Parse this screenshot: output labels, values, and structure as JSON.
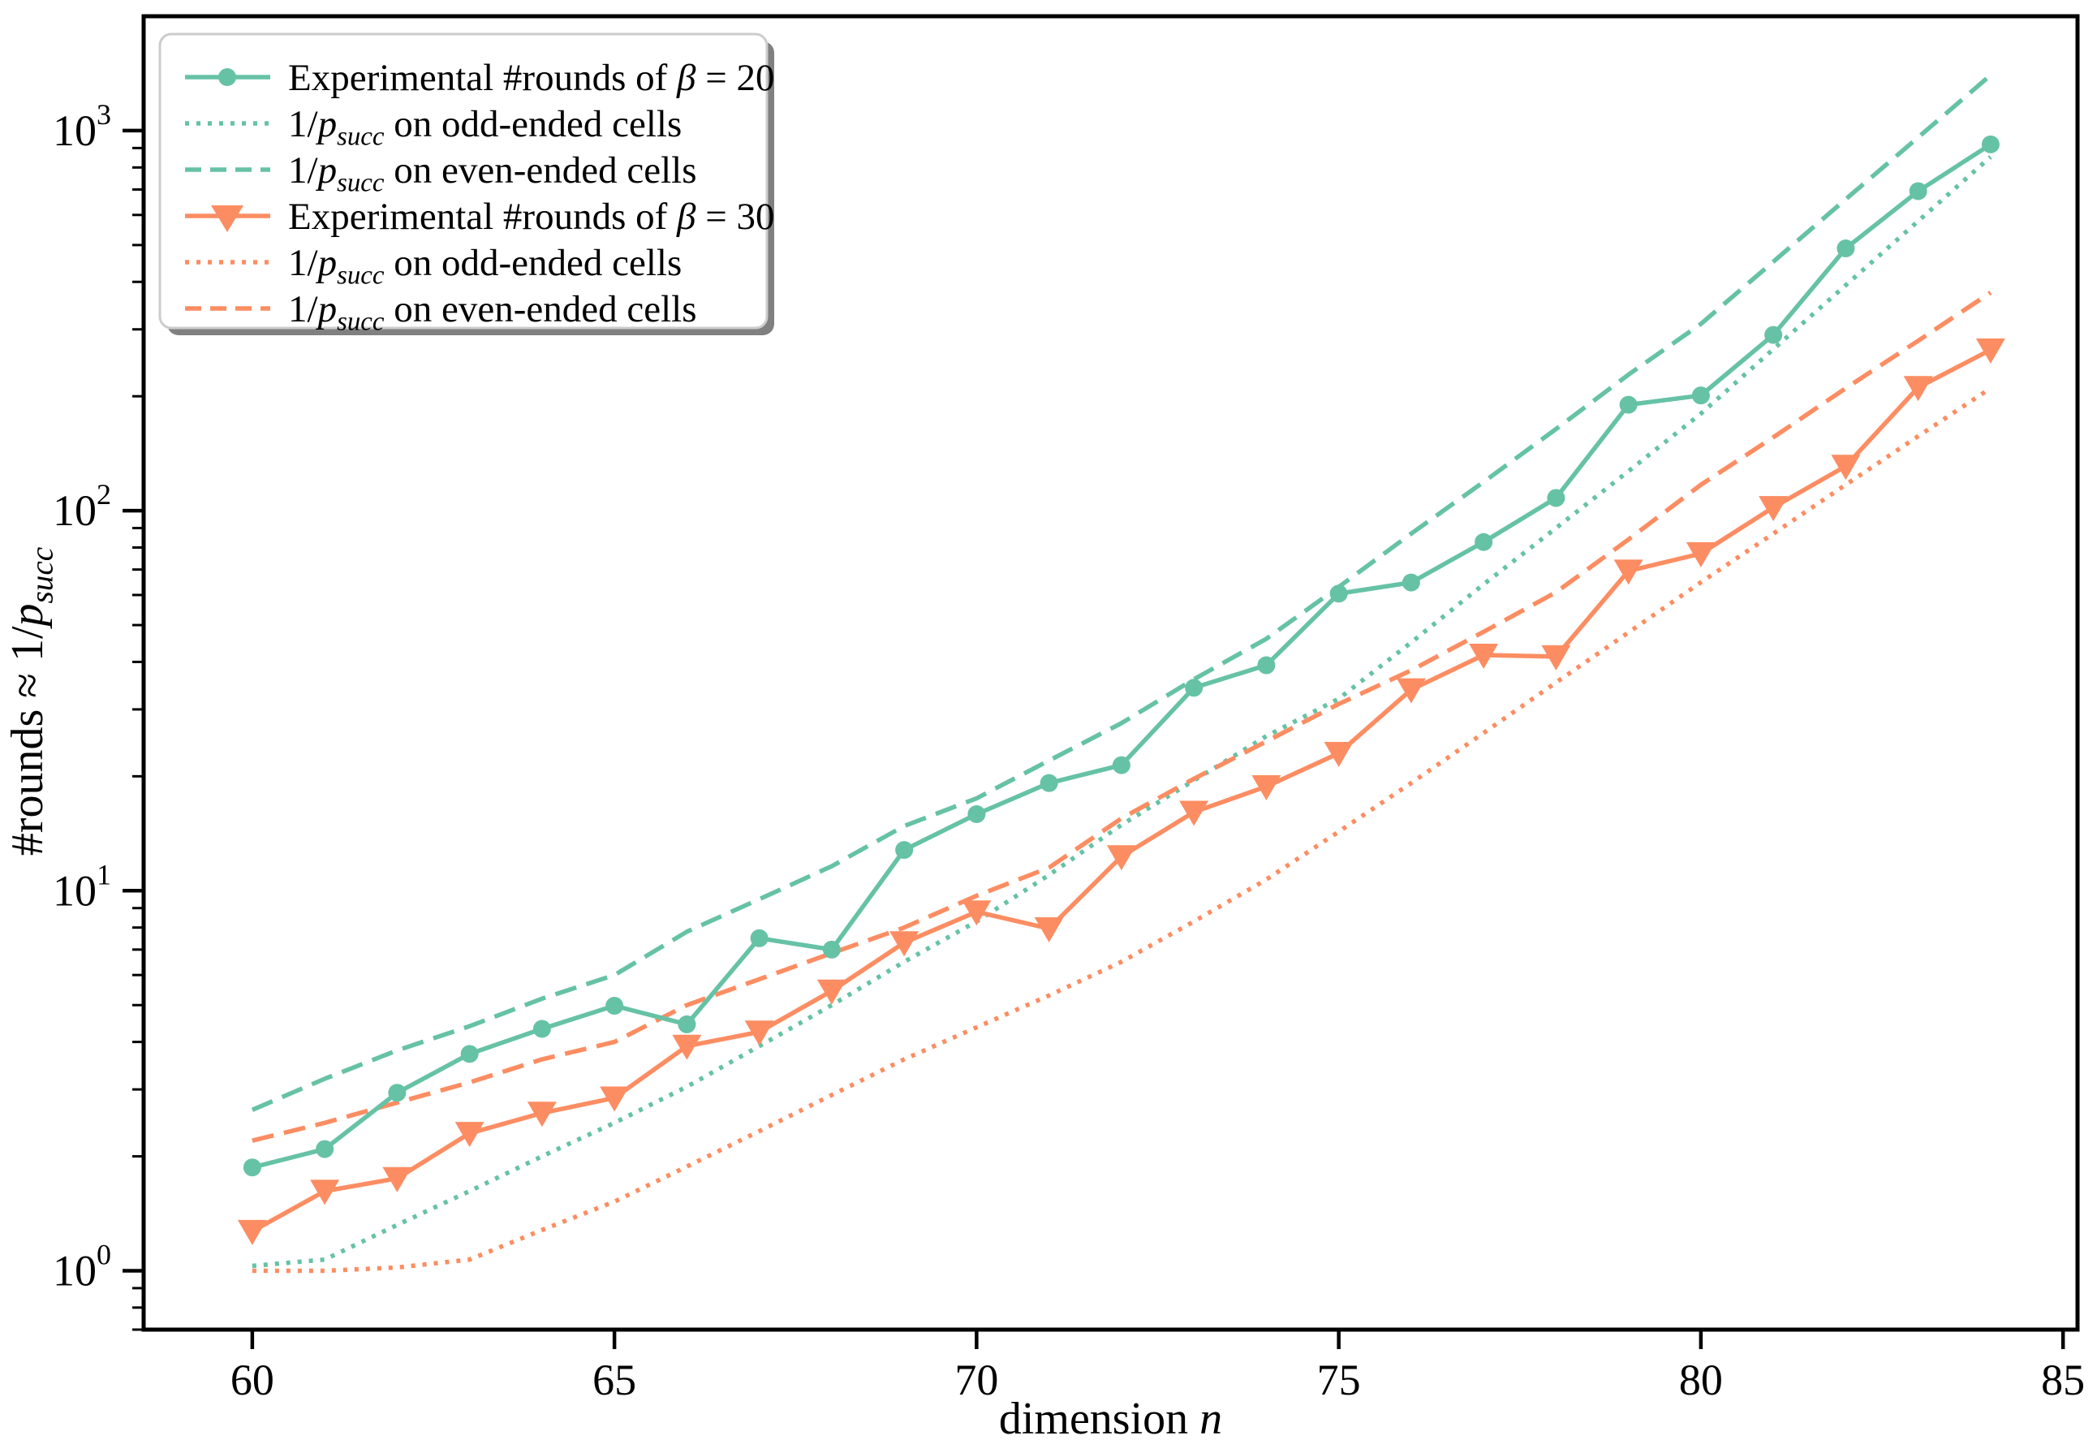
{
  "chart_data": {
    "type": "line",
    "title": "",
    "grid": false,
    "legend_position": "upper left",
    "colors": {
      "teal": "#66C2A5",
      "orange": "#FC8D62",
      "legend_border": "#cccccc",
      "legend_shadow": "#808080",
      "axis": "#000000"
    },
    "x_axis": {
      "label_parts": [
        {
          "t": "dimension "
        },
        {
          "t": "n",
          "i": true
        }
      ],
      "ticks": [
        60,
        65,
        70,
        75,
        80,
        85
      ],
      "range": [
        58.5,
        85.2
      ]
    },
    "y_axis": {
      "scale": "log",
      "label_parts": [
        {
          "t": "#rounds ≈ 1/"
        },
        {
          "t": "p",
          "i": true
        },
        {
          "t": "succ",
          "i": true,
          "sub": true
        }
      ],
      "ticks": [
        {
          "v": 1,
          "exp": "0"
        },
        {
          "v": 10,
          "exp": "1"
        },
        {
          "v": 100,
          "exp": "2"
        },
        {
          "v": 1000,
          "exp": "3"
        }
      ],
      "range": [
        0.7,
        2000
      ]
    },
    "x_values": [
      60,
      61,
      62,
      63,
      64,
      65,
      66,
      67,
      68,
      69,
      70,
      71,
      72,
      73,
      74,
      75,
      76,
      77,
      78,
      79,
      80,
      81,
      82,
      83,
      84
    ],
    "series": [
      {
        "name": "exp-rounds-beta20",
        "color": "#66C2A5",
        "line": "solid",
        "marker": "circle",
        "label_parts": [
          {
            "t": "Experimental #rounds of "
          },
          {
            "t": "β",
            "i": true
          },
          {
            "t": " = 20"
          }
        ],
        "y": [
          1.87,
          2.09,
          2.94,
          3.72,
          4.33,
          4.98,
          4.45,
          7.5,
          7.0,
          12.8,
          15.9,
          19.2,
          21.4,
          34.2,
          39.2,
          60.5,
          64.7,
          82.7,
          108,
          190,
          201,
          290,
          490,
          693,
          920
        ]
      },
      {
        "name": "inv-psucc-odd-beta20",
        "color": "#66C2A5",
        "line": "dotted",
        "marker": null,
        "label_parts": [
          {
            "t": "1/"
          },
          {
            "t": "p",
            "i": true
          },
          {
            "t": "succ",
            "i": true,
            "sub": true
          },
          {
            "t": " on odd-ended cells"
          }
        ],
        "y": [
          1.03,
          1.07,
          1.32,
          1.62,
          2.0,
          2.45,
          3.05,
          3.9,
          5.0,
          6.5,
          8.3,
          11.0,
          14.9,
          19.5,
          25.5,
          32,
          45,
          64,
          90,
          127,
          180,
          266,
          392,
          578,
          853
        ]
      },
      {
        "name": "inv-psucc-even-beta20",
        "color": "#66C2A5",
        "line": "dashed",
        "marker": null,
        "label_parts": [
          {
            "t": "1/"
          },
          {
            "t": "p",
            "i": true
          },
          {
            "t": "succ",
            "i": true,
            "sub": true
          },
          {
            "t": " on even-ended cells"
          }
        ],
        "y": [
          2.65,
          3.2,
          3.8,
          4.4,
          5.2,
          6.0,
          7.8,
          9.5,
          11.6,
          14.8,
          17.5,
          22,
          27.6,
          36,
          46,
          63,
          87,
          119,
          164,
          228,
          310,
          452,
          660,
          960,
          1400
        ]
      },
      {
        "name": "exp-rounds-beta30",
        "color": "#FC8D62",
        "line": "solid",
        "marker": "triangle-down",
        "label_parts": [
          {
            "t": "Experimental #rounds of "
          },
          {
            "t": "β",
            "i": true
          },
          {
            "t": " = 30"
          }
        ],
        "y": [
          1.27,
          1.62,
          1.75,
          2.3,
          2.6,
          2.85,
          3.9,
          4.25,
          5.45,
          7.3,
          8.8,
          7.95,
          12.3,
          16.1,
          18.8,
          23,
          33.8,
          41.7,
          41.3,
          69.4,
          77.1,
          102,
          131,
          211,
          265
        ]
      },
      {
        "name": "inv-psucc-odd-beta30",
        "color": "#FC8D62",
        "line": "dotted",
        "marker": null,
        "label_parts": [
          {
            "t": "1/"
          },
          {
            "t": "p",
            "i": true
          },
          {
            "t": "succ",
            "i": true,
            "sub": true
          },
          {
            "t": " on odd-ended cells"
          }
        ],
        "y": [
          1.0,
          1.0,
          1.02,
          1.07,
          1.28,
          1.52,
          1.88,
          2.33,
          2.9,
          3.6,
          4.37,
          5.3,
          6.5,
          8.3,
          10.7,
          14.3,
          19.2,
          26,
          35.3,
          47.8,
          64.8,
          87,
          117,
          157,
          210
        ]
      },
      {
        "name": "inv-psucc-even-beta30",
        "color": "#FC8D62",
        "line": "dashed",
        "marker": null,
        "label_parts": [
          {
            "t": "1/"
          },
          {
            "t": "p",
            "i": true
          },
          {
            "t": "succ",
            "i": true,
            "sub": true
          },
          {
            "t": " on even-ended cells"
          }
        ],
        "y": [
          2.2,
          2.45,
          2.77,
          3.13,
          3.6,
          4.0,
          5.0,
          5.85,
          6.85,
          8.0,
          9.7,
          11.5,
          15.5,
          19.7,
          24.7,
          31,
          38,
          48,
          61,
          84,
          117,
          156,
          210,
          280,
          375
        ]
      }
    ],
    "legend_order": [
      0,
      1,
      2,
      3,
      4,
      5
    ]
  }
}
